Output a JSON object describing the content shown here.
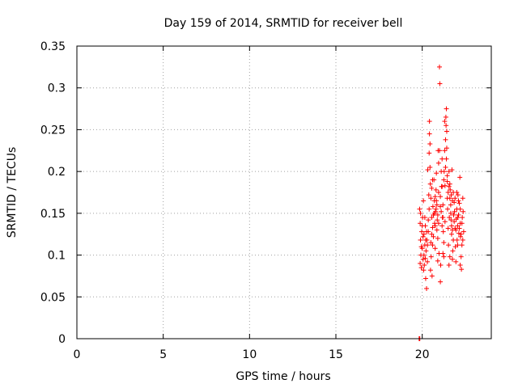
{
  "chart_data": {
    "type": "scatter",
    "title": "Day 159 of 2014, SRMTID for receiver bell",
    "xlabel": "GPS time / hours",
    "ylabel": "SRMTID / TECUs",
    "xlim": [
      0,
      24.0
    ],
    "ylim": [
      0,
      0.35
    ],
    "xticks": [
      0,
      5,
      10,
      15,
      20
    ],
    "xtick_labels": [
      "0",
      "5",
      "10",
      "15",
      "20"
    ],
    "yticks": [
      0,
      0.05,
      0.1,
      0.15,
      0.2,
      0.25,
      0.3,
      0.35
    ],
    "ytick_labels": [
      "0",
      "0.05",
      "0.1",
      "0.15",
      "0.2",
      "0.25",
      "0.3",
      "0.35"
    ],
    "grid": true,
    "marker": "+",
    "color": "#ff0000",
    "series": [
      {
        "name": "SRMTID",
        "points": [
          [
            19.82,
            0.0
          ],
          [
            19.84,
            0.0
          ],
          [
            19.86,
            0.0
          ],
          [
            19.85,
            0.155
          ],
          [
            19.88,
            0.138
          ],
          [
            19.9,
            0.118
          ],
          [
            19.92,
            0.1
          ],
          [
            19.95,
            0.085
          ],
          [
            19.97,
            0.128
          ],
          [
            20.0,
            0.108
          ],
          [
            20.02,
            0.145
          ],
          [
            20.05,
            0.095
          ],
          [
            20.07,
            0.165
          ],
          [
            20.1,
            0.125
          ],
          [
            20.12,
            0.088
          ],
          [
            20.15,
            0.112
          ],
          [
            20.18,
            0.135
          ],
          [
            20.2,
            0.072
          ],
          [
            20.22,
            0.105
          ],
          [
            20.25,
            0.06
          ],
          [
            20.27,
            0.118
          ],
          [
            20.3,
            0.092
          ],
          [
            20.32,
            0.202
          ],
          [
            20.35,
            0.142
          ],
          [
            20.38,
            0.172
          ],
          [
            20.4,
            0.222
          ],
          [
            20.42,
            0.26
          ],
          [
            20.45,
            0.233
          ],
          [
            20.47,
            0.185
          ],
          [
            20.5,
            0.115
          ],
          [
            20.52,
            0.098
          ],
          [
            20.55,
            0.125
          ],
          [
            20.57,
            0.075
          ],
          [
            20.6,
            0.133
          ],
          [
            20.62,
            0.158
          ],
          [
            20.65,
            0.148
          ],
          [
            20.68,
            0.19
          ],
          [
            20.7,
            0.165
          ],
          [
            20.72,
            0.138
          ],
          [
            20.75,
            0.108
          ],
          [
            20.77,
            0.152
          ],
          [
            20.8,
            0.178
          ],
          [
            20.82,
            0.198
          ],
          [
            20.85,
            0.16
          ],
          [
            20.87,
            0.142
          ],
          [
            20.9,
            0.12
          ],
          [
            20.92,
            0.225
          ],
          [
            20.95,
            0.175
          ],
          [
            20.97,
            0.102
          ],
          [
            21.0,
            0.325
          ],
          [
            21.02,
            0.305
          ],
          [
            21.05,
            0.068
          ],
          [
            21.07,
            0.088
          ],
          [
            21.1,
            0.152
          ],
          [
            21.12,
            0.182
          ],
          [
            21.15,
            0.215
          ],
          [
            21.17,
            0.145
          ],
          [
            21.2,
            0.16
          ],
          [
            21.22,
            0.128
          ],
          [
            21.25,
            0.098
          ],
          [
            21.27,
            0.2
          ],
          [
            21.3,
            0.26
          ],
          [
            21.32,
            0.183
          ],
          [
            21.35,
            0.238
          ],
          [
            21.37,
            0.265
          ],
          [
            21.4,
            0.275
          ],
          [
            21.42,
            0.228
          ],
          [
            21.45,
            0.195
          ],
          [
            21.47,
            0.155
          ],
          [
            21.5,
            0.132
          ],
          [
            21.52,
            0.112
          ],
          [
            21.55,
            0.088
          ],
          [
            21.57,
            0.145
          ],
          [
            21.6,
            0.168
          ],
          [
            21.62,
            0.178
          ],
          [
            21.65,
            0.16
          ],
          [
            21.67,
            0.142
          ],
          [
            21.7,
            0.125
          ],
          [
            21.72,
            0.202
          ],
          [
            21.75,
            0.13
          ],
          [
            21.77,
            0.105
          ],
          [
            21.8,
            0.118
          ],
          [
            21.82,
            0.148
          ],
          [
            21.85,
            0.163
          ],
          [
            21.87,
            0.152
          ],
          [
            21.9,
            0.132
          ],
          [
            21.92,
            0.11
          ],
          [
            21.95,
            0.092
          ],
          [
            21.97,
            0.143
          ],
          [
            22.0,
            0.155
          ],
          [
            22.02,
            0.118
          ],
          [
            22.05,
            0.135
          ],
          [
            22.07,
            0.172
          ],
          [
            22.1,
            0.148
          ],
          [
            22.12,
            0.126
          ],
          [
            22.15,
            0.162
          ],
          [
            22.18,
            0.193
          ],
          [
            22.2,
            0.138
          ],
          [
            22.22,
            0.122
          ],
          [
            22.25,
            0.098
          ],
          [
            22.27,
            0.083
          ],
          [
            22.3,
            0.112
          ],
          [
            22.32,
            0.145
          ],
          [
            22.35,
            0.168
          ],
          [
            22.37,
            0.152
          ],
          [
            22.4,
            0.128
          ],
          [
            19.9,
            0.15
          ],
          [
            19.95,
            0.11
          ],
          [
            20.0,
            0.135
          ],
          [
            20.05,
            0.122
          ],
          [
            20.1,
            0.1
          ],
          [
            20.15,
            0.145
          ],
          [
            20.2,
            0.118
          ],
          [
            20.25,
            0.128
          ],
          [
            20.3,
            0.112
          ],
          [
            20.35,
            0.128
          ],
          [
            20.4,
            0.155
          ],
          [
            20.45,
            0.205
          ],
          [
            20.5,
            0.168
          ],
          [
            20.55,
            0.145
          ],
          [
            20.6,
            0.112
          ],
          [
            20.65,
            0.122
          ],
          [
            20.7,
            0.15
          ],
          [
            20.75,
            0.135
          ],
          [
            20.8,
            0.155
          ],
          [
            20.85,
            0.13
          ],
          [
            20.9,
            0.148
          ],
          [
            20.95,
            0.138
          ],
          [
            21.0,
            0.225
          ],
          [
            21.05,
            0.17
          ],
          [
            21.1,
            0.2
          ],
          [
            21.15,
            0.182
          ],
          [
            21.2,
            0.145
          ],
          [
            21.25,
            0.115
          ],
          [
            21.3,
            0.225
          ],
          [
            21.35,
            0.205
          ],
          [
            21.4,
            0.215
          ],
          [
            21.45,
            0.188
          ],
          [
            21.5,
            0.175
          ],
          [
            21.55,
            0.2
          ],
          [
            21.6,
            0.185
          ],
          [
            21.65,
            0.15
          ],
          [
            21.7,
            0.135
          ],
          [
            21.75,
            0.165
          ],
          [
            21.8,
            0.175
          ],
          [
            21.85,
            0.14
          ],
          [
            21.9,
            0.168
          ],
          [
            21.95,
            0.13
          ],
          [
            22.0,
            0.175
          ],
          [
            22.05,
            0.145
          ],
          [
            22.1,
            0.165
          ],
          [
            22.15,
            0.132
          ],
          [
            22.2,
            0.155
          ],
          [
            22.25,
            0.125
          ],
          [
            22.3,
            0.138
          ],
          [
            22.35,
            0.118
          ],
          [
            20.42,
            0.245
          ],
          [
            21.38,
            0.255
          ],
          [
            21.42,
            0.248
          ],
          [
            20.95,
            0.21
          ],
          [
            21.25,
            0.19
          ],
          [
            19.88,
            0.09
          ],
          [
            20.08,
            0.082
          ],
          [
            20.18,
            0.096
          ],
          [
            20.48,
            0.082
          ],
          [
            20.9,
            0.093
          ],
          [
            21.2,
            0.102
          ],
          [
            21.6,
            0.098
          ],
          [
            22.2,
            0.088
          ],
          [
            22.05,
            0.112
          ],
          [
            21.75,
            0.095
          ],
          [
            20.55,
            0.18
          ],
          [
            20.6,
            0.19
          ],
          [
            20.75,
            0.17
          ],
          [
            20.82,
            0.165
          ],
          [
            21.05,
            0.158
          ],
          [
            21.15,
            0.135
          ],
          [
            21.32,
            0.14
          ],
          [
            21.45,
            0.168
          ],
          [
            21.55,
            0.182
          ],
          [
            21.68,
            0.172
          ]
        ]
      }
    ]
  }
}
